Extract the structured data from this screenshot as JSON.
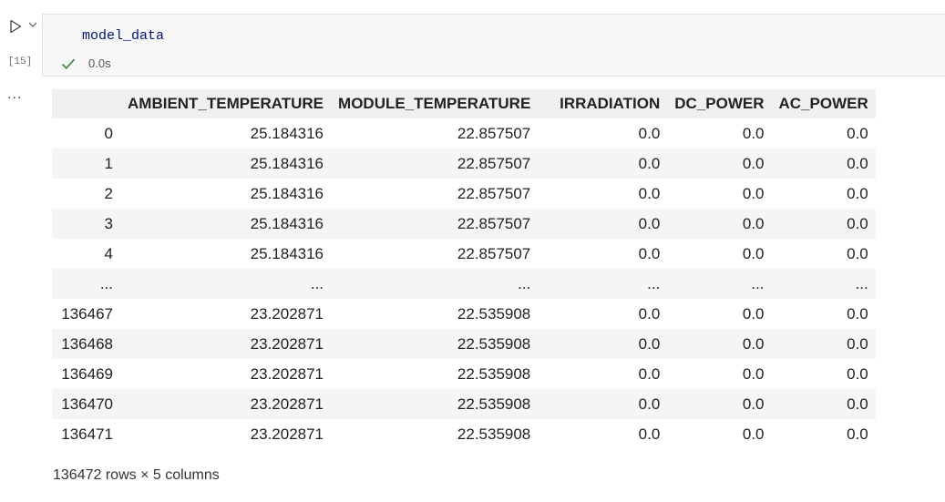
{
  "cell": {
    "execution_count": "[15]",
    "code": "model_data",
    "status": {
      "icon": "check-icon",
      "duration": "0.0s",
      "color": "#388a34"
    },
    "run_icon": "play-icon",
    "run_menu_icon": "chevron-down-icon",
    "code_color": "#001080"
  },
  "output": {
    "more_label": "...",
    "table": {
      "columns": [
        "",
        "AMBIENT_TEMPERATURE",
        "MODULE_TEMPERATURE",
        "IRRADIATION",
        "DC_POWER",
        "AC_POWER"
      ],
      "rows": [
        [
          "0",
          "25.184316",
          "22.857507",
          "0.0",
          "0.0",
          "0.0"
        ],
        [
          "1",
          "25.184316",
          "22.857507",
          "0.0",
          "0.0",
          "0.0"
        ],
        [
          "2",
          "25.184316",
          "22.857507",
          "0.0",
          "0.0",
          "0.0"
        ],
        [
          "3",
          "25.184316",
          "22.857507",
          "0.0",
          "0.0",
          "0.0"
        ],
        [
          "4",
          "25.184316",
          "22.857507",
          "0.0",
          "0.0",
          "0.0"
        ],
        [
          "...",
          "...",
          "...",
          "...",
          "...",
          "..."
        ],
        [
          "136467",
          "23.202871",
          "22.535908",
          "0.0",
          "0.0",
          "0.0"
        ],
        [
          "136468",
          "23.202871",
          "22.535908",
          "0.0",
          "0.0",
          "0.0"
        ],
        [
          "136469",
          "23.202871",
          "22.535908",
          "0.0",
          "0.0",
          "0.0"
        ],
        [
          "136470",
          "23.202871",
          "22.535908",
          "0.0",
          "0.0",
          "0.0"
        ],
        [
          "136471",
          "23.202871",
          "22.535908",
          "0.0",
          "0.0",
          "0.0"
        ]
      ]
    },
    "shape": "136472 rows × 5 columns"
  }
}
